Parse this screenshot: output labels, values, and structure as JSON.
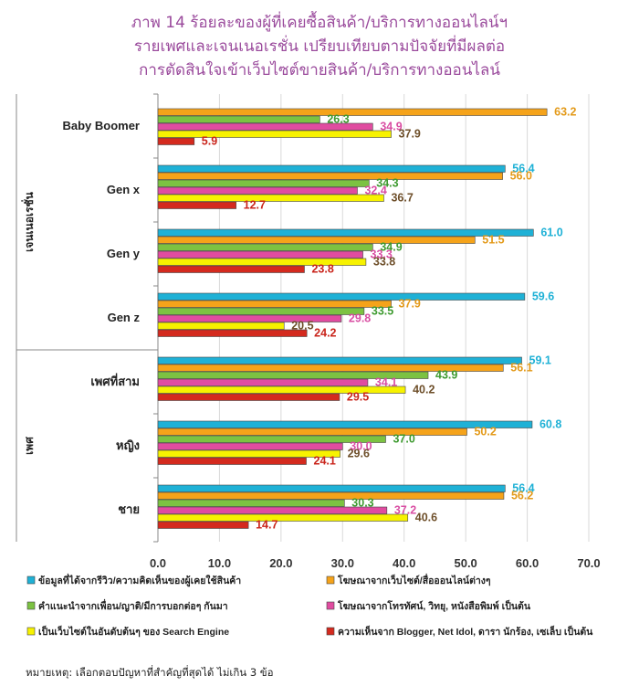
{
  "title_lines": [
    "ภาพ 14 ร้อยละของผู้ที่เคยซื้อสินค้า/บริการทางออนไลน์ฯ",
    "รายเพศและเจนเนอเรชั่น เปรียบเทียบตามปัจจัยที่มีผลต่อ",
    "การตัดสินใจเข้าเว็บไซต์ขายสินค้า/บริการทางออนไลน์"
  ],
  "note": "หมายเหตุ: เลือกตอบปัญหาที่สำคัญที่สุดได้ ไม่เกิน 3 ข้อ",
  "chart_data": {
    "type": "bar",
    "orientation": "horizontal",
    "title": "ภาพ 14 ร้อยละของผู้ที่เคยซื้อสินค้า/บริการทางออนไลน์ฯ รายเพศและเจนเนอเรชั่น เปรียบเทียบตามปัจจัยที่มีผลต่อการตัดสินใจเข้าเว็บไซต์ขายสินค้า/บริการทางออนไลน์",
    "groups": [
      {
        "label": "เจนเนอเรชั่น",
        "categories": [
          "Baby Boomer",
          "Gen x",
          "Gen y",
          "Gen z"
        ]
      },
      {
        "label": "เพศ",
        "categories": [
          "เพศที่สาม",
          "หญิง",
          "ชาย"
        ]
      }
    ],
    "categories": [
      "Baby Boomer",
      "Gen x",
      "Gen y",
      "Gen z",
      "เพศที่สาม",
      "หญิง",
      "ชาย"
    ],
    "xlim": [
      0,
      70
    ],
    "xticks": [
      "0.0",
      "10.0",
      "20.0",
      "30.0",
      "40.0",
      "50.0",
      "60.0",
      "70.0"
    ],
    "series": [
      {
        "name": "ข้อมูลที่ได้จากรีวิว/ความคิดเห็นของผู้เคยใช้สินค้า",
        "color": "#1fb1d6",
        "values": [
          null,
          56.4,
          61.0,
          59.6,
          59.1,
          60.8,
          56.4
        ]
      },
      {
        "name": "โฆษณาจากเว็บไซต์/สื่อออนไลน์ต่างๆ",
        "color": "#f5a31a",
        "values": [
          63.2,
          56.0,
          51.5,
          37.9,
          56.1,
          50.2,
          56.2
        ]
      },
      {
        "name": "คำแนะนำจากเพื่อน/ญาติ/มีการบอกต่อๆ กันมา",
        "color": "#7cc242",
        "values": [
          26.3,
          34.3,
          34.9,
          33.5,
          43.9,
          37.0,
          30.3
        ]
      },
      {
        "name": "โฆษณาจากโทรทัศน์, วิทยุ, หนังสือพิมพ์ เป็นต้น",
        "color": "#e04ca0",
        "values": [
          34.9,
          32.4,
          33.3,
          29.8,
          34.1,
          30.0,
          37.2
        ]
      },
      {
        "name": "เป็นเว็บไซต์ในอันดับต้นๆ ของ Search Engine",
        "color": "#f7f200",
        "values": [
          37.9,
          36.7,
          33.8,
          20.5,
          40.2,
          29.6,
          40.6
        ]
      },
      {
        "name": "ความเห็นจาก Blogger, Net Idol, ดารา นักร้อง, เซเล็บ เป็นต้น",
        "color": "#d42a1e",
        "values": [
          5.9,
          12.7,
          23.8,
          24.2,
          29.5,
          24.1,
          14.7
        ]
      }
    ],
    "value_label_colors": [
      "#1fb1d6",
      "#e39a1a",
      "#3d9a2f",
      "#d94ea3",
      "#6e4f2a",
      "#c9241b"
    ]
  }
}
